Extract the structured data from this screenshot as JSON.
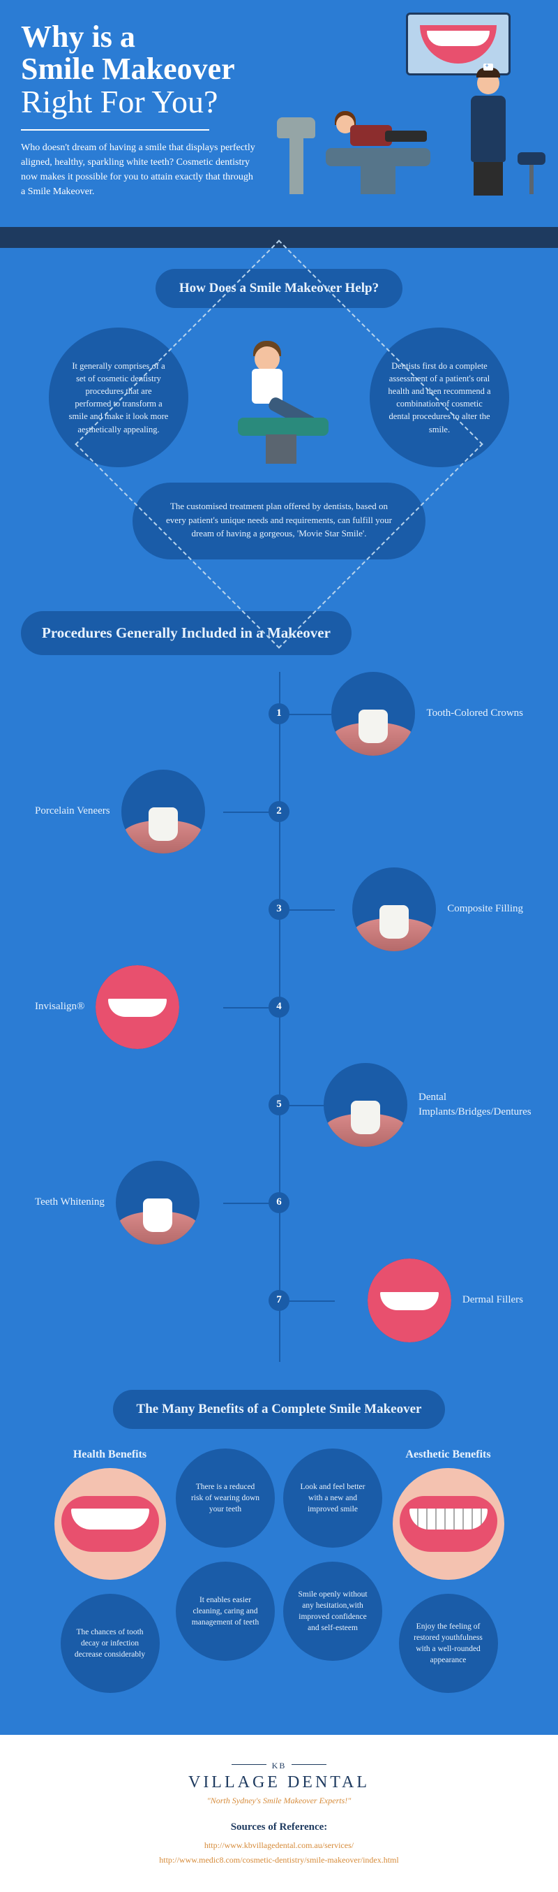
{
  "header": {
    "title_l1": "Why is a",
    "title_l2": "Smile Makeover",
    "title_l3": "Right For You?",
    "intro": "Who doesn't dream of having a smile that displays perfectly aligned, healthy, sparkling white teeth? Cosmetic dentistry now makes it possible for you to attain exactly that through a Smile Makeover."
  },
  "colors": {
    "primary_bg": "#2b7cd4",
    "bubble_bg": "#1a5ca8",
    "dark_bar": "#1e3a5f",
    "text_light": "#e8f2fc",
    "accent_orange": "#d68b3a",
    "lip_pink": "#e8506e",
    "skin": "#f4c2a0"
  },
  "section1": {
    "heading": "How Does a Smile Makeover Help?",
    "bubble_left": "It generally comprises of a set of cosmetic dentistry procedures that are performed to transform a smile and make it look more aesthetically appealing.",
    "bubble_right": "Dentists first do a complete assessment of a patient's oral health and then recommend a combination of cosmetic dental procedures to alter the smile.",
    "bubble_bottom": "The customised treatment plan offered by dentists, based on every patient's unique needs and requirements, can fulfill your dream of having a gorgeous, 'Movie Star Smile'."
  },
  "section2": {
    "heading": "Procedures Generally Included in a Makeover",
    "items": [
      {
        "n": "1",
        "label": "Tooth-Colored Crowns",
        "side": "right"
      },
      {
        "n": "2",
        "label": "Porcelain Veneers",
        "side": "left"
      },
      {
        "n": "3",
        "label": "Composite Filling",
        "side": "right"
      },
      {
        "n": "4",
        "label": "Invisalign®",
        "side": "left"
      },
      {
        "n": "5",
        "label": "Dental Implants/Bridges/Dentures",
        "side": "right"
      },
      {
        "n": "6",
        "label": "Teeth Whitening",
        "side": "left"
      },
      {
        "n": "7",
        "label": "Dermal Fillers",
        "side": "right"
      }
    ]
  },
  "section3": {
    "heading": "The Many Benefits of a Complete Smile Makeover",
    "health_title": "Health Benefits",
    "aesthetic_title": "Aesthetic Benefits",
    "health": [
      "There is a reduced risk of wearing down your teeth",
      "It enables easier cleaning, caring and management of teeth",
      "The chances of tooth decay or infection decrease considerably"
    ],
    "aesthetic": [
      "Look and feel better with a new and improved smile",
      "Smile openly without any hesitation,with improved confidence and self-esteem",
      "Enjoy the feeling of restored youthfulness with a well-rounded appearance"
    ]
  },
  "footer": {
    "logo_kb": "KB",
    "logo_main": "VILLAGE DENTAL",
    "tagline": "\"North Sydney's Smile Makeover Experts!\"",
    "sources_heading": "Sources of Reference:",
    "src1": "http://www.kbvillagedental.com.au/services/",
    "src2": "http://www.medic8.com/cosmetic-dentistry/smile-makeover/index.html"
  }
}
